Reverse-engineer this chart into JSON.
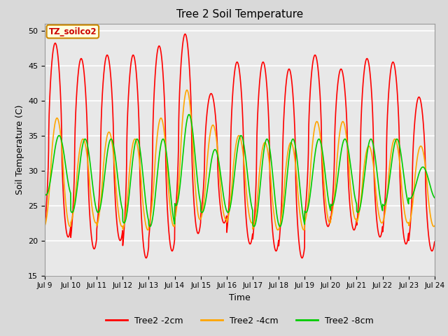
{
  "title": "Tree 2 Soil Temperature",
  "xlabel": "Time",
  "ylabel": "Soil Temperature (C)",
  "ylim": [
    15,
    51
  ],
  "xlim_days": [
    9,
    24
  ],
  "fig_bg_color": "#d9d9d9",
  "plot_bg_color": "#e8e8e8",
  "grid_color": "white",
  "legend_label": "TZ_soilco2",
  "series": {
    "2cm": {
      "color": "#ff0000",
      "label": "Tree2 -2cm",
      "lw": 1.2
    },
    "4cm": {
      "color": "#ffa500",
      "label": "Tree2 -4cm",
      "lw": 1.2
    },
    "8cm": {
      "color": "#00cc00",
      "label": "Tree2 -8cm",
      "lw": 1.2
    }
  },
  "tick_labels": [
    "Jul 9",
    "Jul 10",
    "Jul 11",
    "Jul 12",
    "Jul 13",
    "Jul 14",
    "Jul 15",
    "Jul 16",
    "Jul 17",
    "Jul 18",
    "Jul 19",
    "Jul 20",
    "Jul 21",
    "Jul 22",
    "Jul 23",
    "Jul 24"
  ],
  "yticks": [
    15,
    20,
    25,
    30,
    35,
    40,
    45,
    50
  ],
  "peak_2cm": [
    48.2,
    46.0,
    46.5,
    46.5,
    47.8,
    49.5,
    41.0,
    45.5,
    45.5,
    44.5,
    46.5,
    44.5,
    46.0,
    45.5,
    40.5
  ],
  "trough_2cm": [
    20.5,
    18.8,
    20.0,
    17.5,
    18.5,
    21.0,
    22.5,
    19.5,
    18.5,
    17.5,
    22.0,
    21.5,
    20.5,
    19.5,
    18.5
  ],
  "peak_4cm": [
    37.5,
    34.5,
    35.5,
    34.5,
    37.5,
    41.5,
    36.5,
    35.0,
    34.0,
    34.0,
    37.0,
    37.0,
    33.5,
    34.5,
    33.5
  ],
  "trough_4cm": [
    22.0,
    22.5,
    22.0,
    21.5,
    22.0,
    23.0,
    23.0,
    22.5,
    21.5,
    21.5,
    22.5,
    23.0,
    22.5,
    22.5,
    22.0
  ],
  "peak_8cm": [
    35.0,
    34.5,
    34.5,
    34.5,
    34.5,
    38.0,
    33.0,
    35.0,
    34.5,
    34.5,
    34.5,
    34.5,
    34.5,
    34.5,
    30.5
  ],
  "trough_8cm": [
    26.5,
    24.0,
    24.0,
    22.5,
    22.0,
    25.0,
    24.0,
    24.0,
    22.0,
    22.0,
    24.0,
    25.0,
    24.0,
    25.0,
    26.0
  ],
  "n_points_per_day": 144
}
